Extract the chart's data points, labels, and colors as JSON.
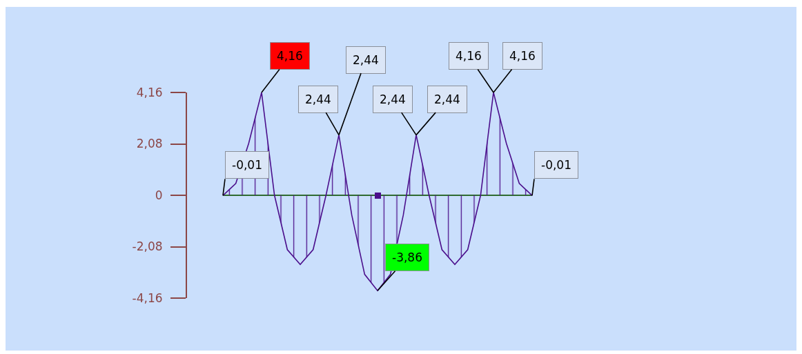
{
  "chart_data": {
    "type": "area",
    "categories": [
      null,
      null,
      null,
      null,
      null,
      null,
      null,
      null,
      null,
      null,
      null,
      null,
      null,
      null,
      null,
      null,
      null,
      null,
      null,
      null,
      null,
      null,
      null,
      null,
      null
    ],
    "series": [
      {
        "color": "#4b0f8c",
        "values": [
          -0.01,
          0.48,
          2.1,
          4.16,
          0,
          -2.2,
          -2.8,
          -2.2,
          0,
          2.44,
          -0.8,
          -3.2,
          -3.86,
          -3.2,
          -0.8,
          2.44,
          0,
          -2.2,
          -2.8,
          -2.2,
          0,
          4.16,
          2.1,
          0.48,
          -0.01
        ],
        "value_labels": [
          "-0,01",
          null,
          null,
          "4,16",
          null,
          null,
          null,
          null,
          null,
          "2,44",
          null,
          null,
          "-3,86",
          null,
          null,
          "2,44",
          null,
          null,
          null,
          null,
          null,
          "4,16",
          null,
          null,
          "-0,01"
        ]
      }
    ],
    "ylim": [
      -4.16,
      4.16
    ],
    "yticks": [
      {
        "value": -4.16,
        "label": "-4,16"
      },
      {
        "value": -2.08,
        "label": "-2,08"
      },
      0,
      {
        "value": 2.08,
        "label": "2,08"
      },
      {
        "value": 4.16,
        "label": "4,16"
      }
    ],
    "tick_labels": "y",
    "marker": "none",
    "annotations": [
      "2,44",
      "2,44",
      "4,16"
    ]
  }
}
